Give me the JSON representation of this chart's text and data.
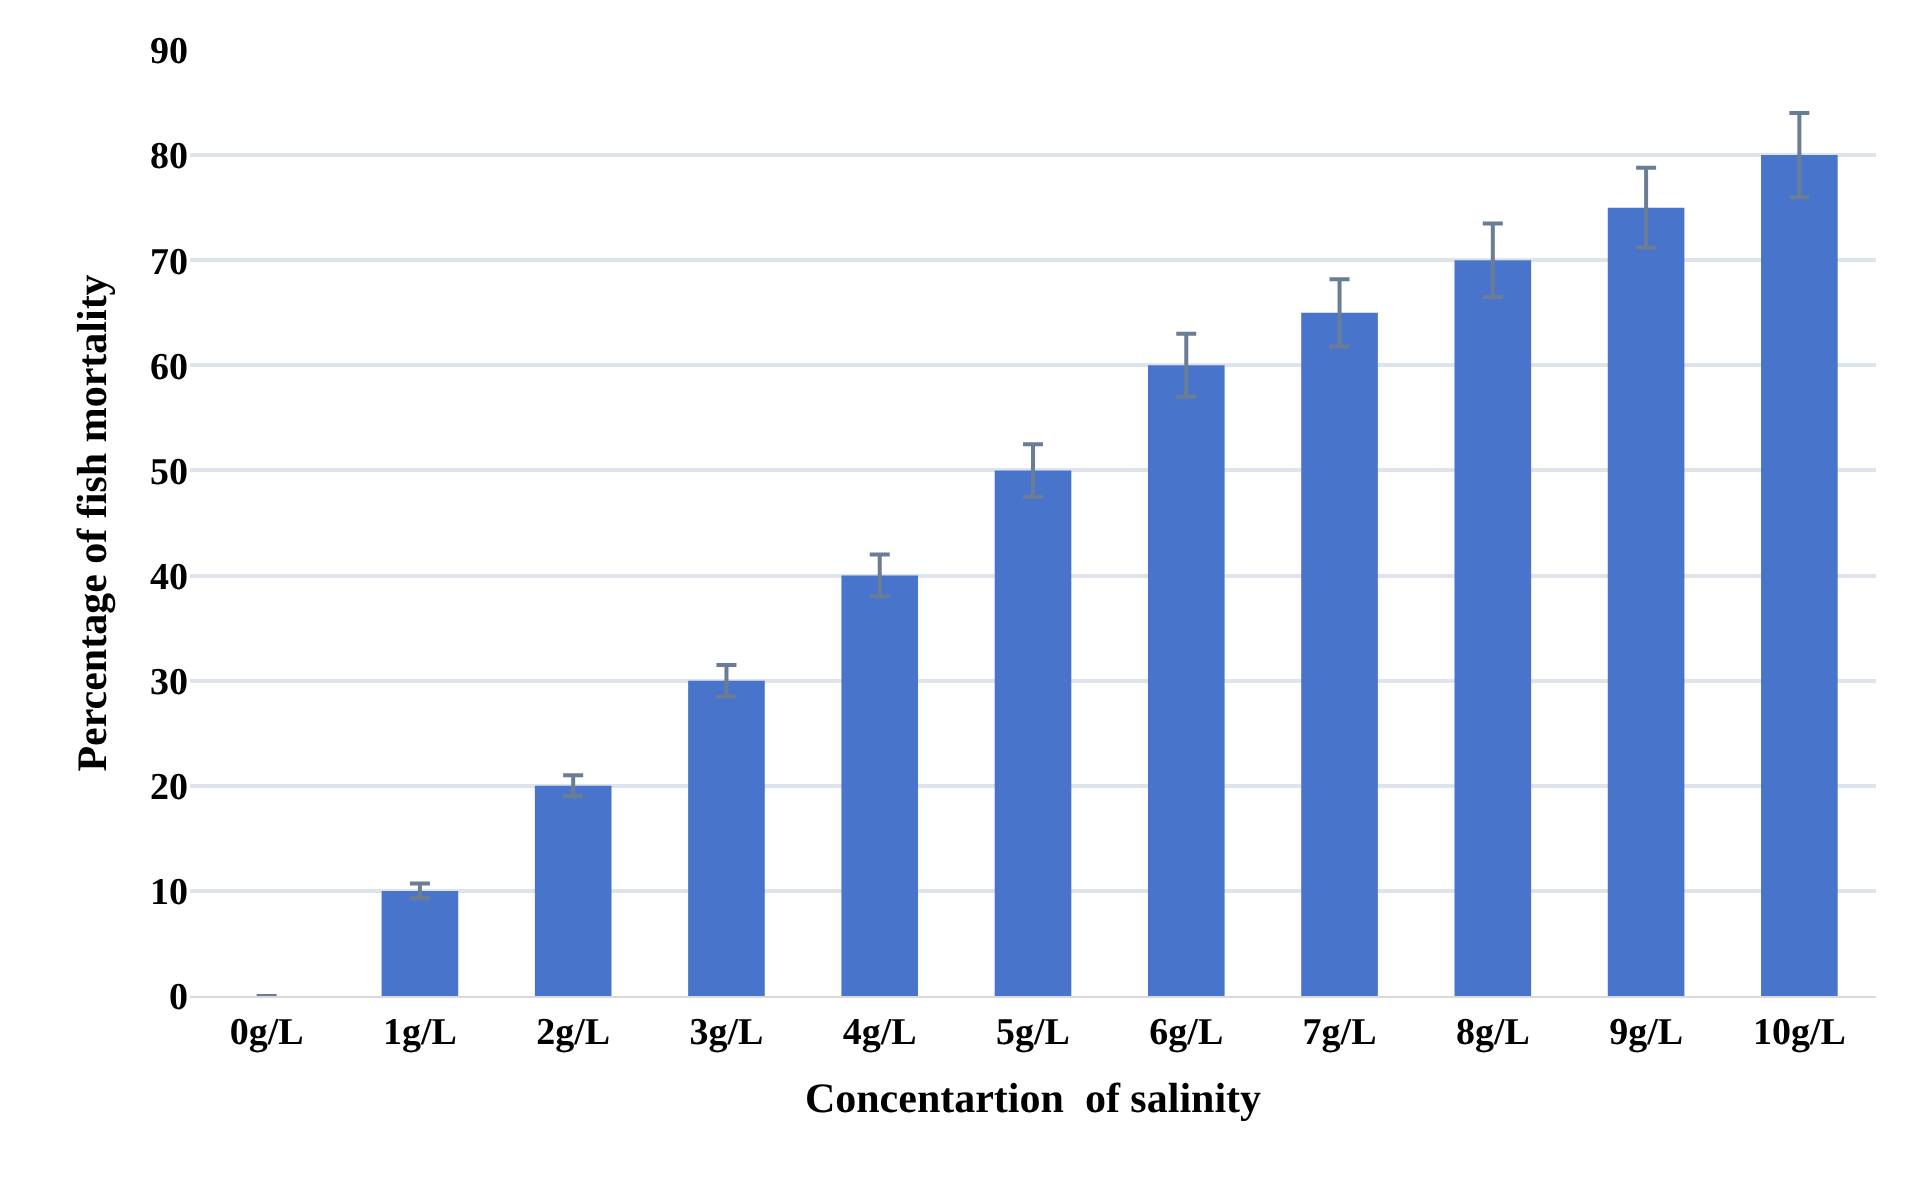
{
  "chart_data": {
    "type": "bar",
    "xlabel": "Concentartion  of salinity",
    "ylabel": "Percentage of fish mortality",
    "categories": [
      "0g/L",
      "1g/L",
      "2g/L",
      "3g/L",
      "4g/L",
      "5g/L",
      "6g/L",
      "7g/L",
      "8g/L",
      "9g/L",
      "10g/L"
    ],
    "values": [
      0,
      10,
      20,
      30,
      40,
      50,
      60,
      65,
      70,
      75,
      80
    ],
    "errors": [
      null,
      0.7,
      1,
      1.5,
      2,
      2.5,
      3,
      3.2,
      3.5,
      3.8,
      4
    ],
    "color": "#4874cc",
    "ylim": [
      0,
      90
    ],
    "yticks": [
      0,
      10,
      20,
      30,
      40,
      50,
      60,
      70,
      80,
      90
    ],
    "grid": "y"
  }
}
